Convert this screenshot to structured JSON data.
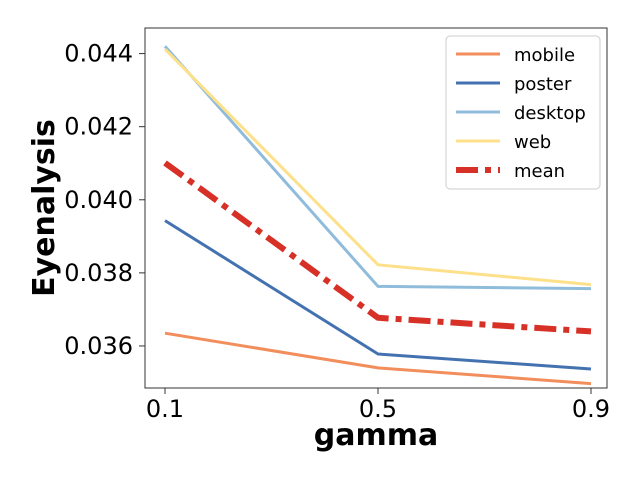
{
  "chart_data": {
    "type": "line",
    "title": "",
    "xlabel": "gamma",
    "ylabel": "Eyenalysis",
    "x": [
      0.1,
      0.5,
      0.9
    ],
    "x_tick_labels": [
      "0.1",
      "0.5",
      "0.9"
    ],
    "y_ticks": [
      0.036,
      0.038,
      0.04,
      0.042,
      0.044
    ],
    "y_tick_labels": [
      "0.036",
      "0.038",
      "0.040",
      "0.042",
      "0.044"
    ],
    "xlim": [
      0.1,
      0.9
    ],
    "ylim": [
      0.03485,
      0.0447
    ],
    "grid": false,
    "legend_position": "top-right",
    "series": [
      {
        "name": "mobile",
        "values": [
          0.03635,
          0.0354,
          0.03497
        ],
        "color": "#f28e5c",
        "style": "solid"
      },
      {
        "name": "poster",
        "values": [
          0.03943,
          0.03578,
          0.03537
        ],
        "color": "#4472b0",
        "style": "solid"
      },
      {
        "name": "desktop",
        "values": [
          0.0442,
          0.03763,
          0.03757
        ],
        "color": "#90bcdc",
        "style": "solid"
      },
      {
        "name": "web",
        "values": [
          0.04412,
          0.03822,
          0.03768
        ],
        "color": "#fde08a",
        "style": "solid"
      },
      {
        "name": "mean",
        "values": [
          0.04101,
          0.03677,
          0.0364
        ],
        "color": "#d73027",
        "style": "dashdot"
      }
    ]
  }
}
